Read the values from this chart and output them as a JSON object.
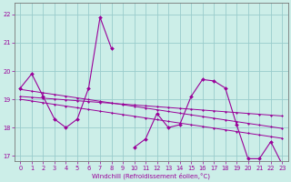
{
  "xlabel": "Windchill (Refroidissement éolien,°C)",
  "bg_color": "#cceee8",
  "line_color": "#990099",
  "grid_color": "#99cccc",
  "x_hours": [
    0,
    1,
    2,
    3,
    4,
    5,
    6,
    7,
    8,
    9,
    10,
    11,
    12,
    13,
    14,
    15,
    16,
    17,
    18,
    19,
    20,
    21,
    22,
    23
  ],
  "y_main": [
    19.4,
    19.9,
    19.1,
    18.3,
    18.0,
    18.3,
    19.4,
    21.9,
    20.8,
    null,
    17.3,
    17.6,
    18.5,
    18.0,
    18.1,
    19.1,
    19.7,
    19.65,
    19.4,
    18.1,
    16.9,
    16.9,
    17.5,
    16.7
  ],
  "y_trendA": [
    19.0,
    18.94,
    18.88,
    18.82,
    18.76,
    18.7,
    18.64,
    18.58,
    18.52,
    18.46,
    18.4,
    18.34,
    18.28,
    18.22,
    18.16,
    18.1,
    18.04,
    17.98,
    17.92,
    17.86,
    17.8,
    17.74,
    17.68,
    17.62
  ],
  "y_trendB": [
    19.1,
    19.07,
    19.04,
    19.01,
    18.98,
    18.95,
    18.92,
    18.89,
    18.86,
    18.83,
    18.8,
    18.77,
    18.74,
    18.71,
    18.68,
    18.65,
    18.62,
    18.59,
    18.56,
    18.53,
    18.5,
    18.47,
    18.44,
    18.41
  ],
  "y_trendC": [
    19.35,
    19.29,
    19.23,
    19.17,
    19.11,
    19.05,
    18.99,
    18.93,
    18.87,
    18.81,
    18.75,
    18.69,
    18.63,
    18.57,
    18.51,
    18.45,
    18.39,
    18.33,
    18.27,
    18.21,
    18.15,
    18.09,
    18.03,
    17.97
  ],
  "ylim": [
    16.8,
    22.4
  ],
  "yticks": [
    17,
    18,
    19,
    20,
    21,
    22
  ],
  "xticks": [
    0,
    1,
    2,
    3,
    4,
    5,
    6,
    7,
    8,
    9,
    10,
    11,
    12,
    13,
    14,
    15,
    16,
    17,
    18,
    19,
    20,
    21,
    22,
    23
  ]
}
